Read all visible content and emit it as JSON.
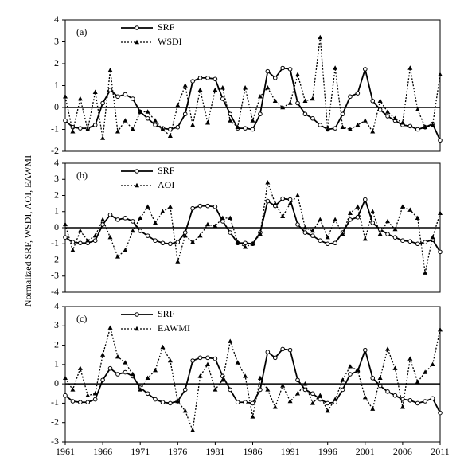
{
  "chart_data": [
    {
      "type": "line",
      "panel_label": "(a)",
      "ylabel": "Normalized SRF, WSDI, AOI, EAWMI",
      "x": [
        1961,
        1962,
        1963,
        1964,
        1965,
        1966,
        1967,
        1968,
        1969,
        1970,
        1971,
        1972,
        1973,
        1974,
        1975,
        1976,
        1977,
        1978,
        1979,
        1980,
        1981,
        1982,
        1983,
        1984,
        1985,
        1986,
        1987,
        1988,
        1989,
        1990,
        1991,
        1992,
        1993,
        1994,
        1995,
        1996,
        1997,
        1998,
        1999,
        2000,
        2001,
        2002,
        2003,
        2004,
        2005,
        2006,
        2007,
        2008,
        2009,
        2010,
        2011
      ],
      "xlim": [
        1961,
        2011
      ],
      "ylim": [
        -2,
        4
      ],
      "yticks": [
        -2,
        -1,
        0,
        1,
        2,
        3,
        4
      ],
      "series": [
        {
          "name": "SRF",
          "color": "#000000",
          "style": "solid",
          "marker": "circle",
          "values": [
            -0.6,
            -0.9,
            -0.95,
            -0.95,
            -0.8,
            0.2,
            0.8,
            0.5,
            0.6,
            0.4,
            -0.2,
            -0.5,
            -0.8,
            -0.95,
            -1.0,
            -0.9,
            -0.3,
            1.2,
            1.35,
            1.35,
            1.3,
            0.4,
            -0.3,
            -0.95,
            -0.95,
            -1.0,
            -0.3,
            1.65,
            1.35,
            1.8,
            1.75,
            0.2,
            -0.3,
            -0.5,
            -0.8,
            -1.0,
            -0.95,
            -0.3,
            0.5,
            0.65,
            1.75,
            0.3,
            -0.1,
            -0.4,
            -0.6,
            -0.8,
            -0.85,
            -1.0,
            -0.9,
            -0.75,
            -1.5
          ]
        },
        {
          "name": "WSDI",
          "color": "#000000",
          "style": "dotted",
          "marker": "triangle",
          "values": [
            0.5,
            -1.1,
            0.4,
            -1.0,
            0.7,
            -1.4,
            1.7,
            -1.1,
            -0.6,
            -1.0,
            -0.2,
            -0.2,
            -0.6,
            -1.0,
            -1.3,
            0.1,
            1.0,
            -0.8,
            0.8,
            -0.7,
            0.8,
            0.9,
            -0.6,
            -0.9,
            0.9,
            -0.6,
            0.5,
            0.9,
            0.3,
            0.0,
            0.2,
            1.5,
            0.3,
            0.4,
            3.2,
            -1.0,
            1.8,
            -0.9,
            -1.0,
            -0.8,
            -0.6,
            -1.1,
            0.3,
            -0.2,
            -0.5,
            -0.7,
            1.8,
            -0.1,
            -0.9,
            -0.8,
            1.5
          ]
        }
      ]
    },
    {
      "type": "line",
      "panel_label": "(b)",
      "x": [
        1961,
        1962,
        1963,
        1964,
        1965,
        1966,
        1967,
        1968,
        1969,
        1970,
        1971,
        1972,
        1973,
        1974,
        1975,
        1976,
        1977,
        1978,
        1979,
        1980,
        1981,
        1982,
        1983,
        1984,
        1985,
        1986,
        1987,
        1988,
        1989,
        1990,
        1991,
        1992,
        1993,
        1994,
        1995,
        1996,
        1997,
        1998,
        1999,
        2000,
        2001,
        2002,
        2003,
        2004,
        2005,
        2006,
        2007,
        2008,
        2009,
        2010,
        2011
      ],
      "xlim": [
        1961,
        2011
      ],
      "ylim": [
        -4,
        4
      ],
      "yticks": [
        -4,
        -3,
        -2,
        -1,
        0,
        1,
        2,
        3,
        4
      ],
      "series": [
        {
          "name": "SRF",
          "color": "#000000",
          "style": "solid",
          "marker": "circle",
          "values": [
            -0.6,
            -0.9,
            -0.95,
            -0.95,
            -0.8,
            0.2,
            0.8,
            0.5,
            0.6,
            0.4,
            -0.2,
            -0.5,
            -0.8,
            -0.95,
            -1.0,
            -0.9,
            -0.3,
            1.2,
            1.35,
            1.35,
            1.3,
            0.4,
            -0.3,
            -0.95,
            -0.95,
            -1.0,
            -0.3,
            1.65,
            1.35,
            1.8,
            1.75,
            0.2,
            -0.3,
            -0.5,
            -0.8,
            -1.0,
            -0.95,
            -0.3,
            0.5,
            0.65,
            1.75,
            0.3,
            -0.1,
            -0.4,
            -0.6,
            -0.8,
            -0.85,
            -1.0,
            -0.9,
            -0.75,
            -1.5
          ]
        },
        {
          "name": "AOI",
          "color": "#000000",
          "style": "dotted",
          "marker": "triangle",
          "values": [
            0.2,
            -1.4,
            -0.2,
            -0.8,
            -0.5,
            0.5,
            -0.6,
            -1.8,
            -1.4,
            -0.2,
            0.6,
            1.3,
            0.3,
            1.0,
            1.3,
            -2.1,
            -0.5,
            -0.9,
            -0.5,
            0.2,
            0.1,
            0.6,
            0.6,
            -0.9,
            -1.2,
            -1.0,
            -0.4,
            2.8,
            1.5,
            0.7,
            1.5,
            2.0,
            0.0,
            -0.2,
            0.5,
            -0.6,
            0.5,
            -0.4,
            0.9,
            1.3,
            -0.7,
            1.0,
            -0.4,
            0.4,
            -0.1,
            1.3,
            1.1,
            0.6,
            -2.8,
            -0.6,
            0.9
          ]
        }
      ]
    },
    {
      "type": "line",
      "panel_label": "(c)",
      "x": [
        1961,
        1962,
        1963,
        1964,
        1965,
        1966,
        1967,
        1968,
        1969,
        1970,
        1971,
        1972,
        1973,
        1974,
        1975,
        1976,
        1977,
        1978,
        1979,
        1980,
        1981,
        1982,
        1983,
        1984,
        1985,
        1986,
        1987,
        1988,
        1989,
        1990,
        1991,
        1992,
        1993,
        1994,
        1995,
        1996,
        1997,
        1998,
        1999,
        2000,
        2001,
        2002,
        2003,
        2004,
        2005,
        2006,
        2007,
        2008,
        2009,
        2010,
        2011
      ],
      "xlim": [
        1961,
        2011
      ],
      "xticks": [
        1961,
        1966,
        1971,
        1976,
        1981,
        1986,
        1991,
        1996,
        2001,
        2006,
        2011
      ],
      "ylim": [
        -3,
        4
      ],
      "yticks": [
        -3,
        -2,
        -1,
        0,
        1,
        2,
        3,
        4
      ],
      "series": [
        {
          "name": "SRF",
          "color": "#000000",
          "style": "solid",
          "marker": "circle",
          "values": [
            -0.6,
            -0.9,
            -0.95,
            -0.95,
            -0.8,
            0.2,
            0.8,
            0.5,
            0.6,
            0.4,
            -0.2,
            -0.5,
            -0.8,
            -0.95,
            -1.0,
            -0.9,
            -0.3,
            1.2,
            1.35,
            1.35,
            1.3,
            0.4,
            -0.3,
            -0.95,
            -0.95,
            -1.0,
            -0.3,
            1.65,
            1.35,
            1.8,
            1.75,
            0.2,
            -0.3,
            -0.5,
            -0.8,
            -1.0,
            -0.95,
            -0.3,
            0.5,
            0.65,
            1.75,
            0.3,
            -0.1,
            -0.4,
            -0.6,
            -0.8,
            -0.85,
            -1.0,
            -0.9,
            -0.75,
            -1.5
          ]
        },
        {
          "name": "EAWMI",
          "color": "#000000",
          "style": "dotted",
          "marker": "triangle",
          "values": [
            0.3,
            -0.3,
            0.8,
            -0.6,
            -0.5,
            1.5,
            2.9,
            1.4,
            1.1,
            0.5,
            -0.3,
            0.3,
            0.7,
            1.9,
            1.2,
            -0.9,
            -1.4,
            -2.4,
            0.4,
            1.0,
            -0.3,
            0.2,
            2.2,
            1.1,
            0.4,
            -1.7,
            0.3,
            -0.3,
            -1.2,
            -0.1,
            -0.9,
            -0.5,
            0.0,
            -1.0,
            -0.6,
            -1.4,
            -0.8,
            0.2,
            0.9,
            0.7,
            -0.7,
            -1.3,
            0.3,
            1.8,
            0.8,
            -1.2,
            1.3,
            0.1,
            0.6,
            1.0,
            2.8
          ]
        }
      ]
    }
  ]
}
